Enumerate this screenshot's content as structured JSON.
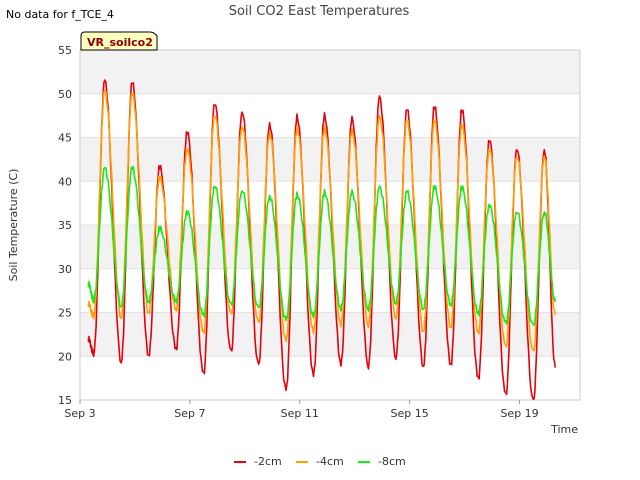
{
  "notice": "No data for f_TCE_4",
  "chart_data": {
    "type": "line",
    "title": "Soil CO2 East Temperatures",
    "xlabel": "Time",
    "ylabel": "Soil Temperature (C)",
    "badge": "VR_soilco2",
    "ylim": [
      15,
      55
    ],
    "yticks": [
      15,
      20,
      25,
      30,
      35,
      40,
      45,
      50,
      55
    ],
    "xlim_days": [
      3,
      21.2
    ],
    "xticks": [
      {
        "day": 3,
        "label": "Sep 3"
      },
      {
        "day": 7,
        "label": "Sep 7"
      },
      {
        "day": 11,
        "label": "Sep 11"
      },
      {
        "day": 15,
        "label": "Sep 15"
      },
      {
        "day": 19,
        "label": "Sep 19"
      }
    ],
    "x_unit": "day of September",
    "legend_position": "bottom-center",
    "grid": "horizontal bands",
    "series": [
      {
        "name": "-2cm",
        "color": "#e8000b",
        "extremes": [
          [
            3.3,
            22
          ],
          [
            3.5,
            20.3
          ],
          [
            3.9,
            51.5
          ],
          [
            4.5,
            19.4
          ],
          [
            4.9,
            51.3
          ],
          [
            5.5,
            20.1
          ],
          [
            5.9,
            41.7
          ],
          [
            6.5,
            20.8
          ],
          [
            6.9,
            45.7
          ],
          [
            7.5,
            17.9
          ],
          [
            7.9,
            49
          ],
          [
            8.5,
            20.4
          ],
          [
            8.9,
            48
          ],
          [
            9.5,
            18.9
          ],
          [
            9.9,
            46.6
          ],
          [
            10.5,
            16.1
          ],
          [
            10.9,
            47.4
          ],
          [
            11.5,
            17.9
          ],
          [
            11.9,
            47.5
          ],
          [
            12.5,
            19.2
          ],
          [
            12.9,
            47.1
          ],
          [
            13.5,
            18.9
          ],
          [
            13.9,
            49.6
          ],
          [
            14.5,
            19.9
          ],
          [
            14.9,
            48.2
          ],
          [
            15.5,
            18.9
          ],
          [
            15.9,
            48.5
          ],
          [
            16.5,
            19
          ],
          [
            16.9,
            48.2
          ],
          [
            17.5,
            17.4
          ],
          [
            17.9,
            44.8
          ],
          [
            18.5,
            15.5
          ],
          [
            18.9,
            43.8
          ],
          [
            19.5,
            14.8
          ],
          [
            19.9,
            43.6
          ],
          [
            20.3,
            18.7
          ]
        ]
      },
      {
        "name": "-4cm",
        "color": "#ff9f00",
        "extremes": [
          [
            3.3,
            26
          ],
          [
            3.5,
            24.6
          ],
          [
            3.9,
            50.3
          ],
          [
            4.5,
            24.5
          ],
          [
            4.9,
            50
          ],
          [
            5.5,
            25
          ],
          [
            5.9,
            40.4
          ],
          [
            6.5,
            25.3
          ],
          [
            6.9,
            43.7
          ],
          [
            7.5,
            22.6
          ],
          [
            7.9,
            47.6
          ],
          [
            8.5,
            24.7
          ],
          [
            8.9,
            46.3
          ],
          [
            9.5,
            23.7
          ],
          [
            9.9,
            45.5
          ],
          [
            10.5,
            21.7
          ],
          [
            10.9,
            46
          ],
          [
            11.5,
            22.8
          ],
          [
            11.9,
            46
          ],
          [
            12.5,
            23.7
          ],
          [
            12.9,
            45.7
          ],
          [
            13.5,
            23.6
          ],
          [
            13.9,
            47.3
          ],
          [
            14.5,
            24.5
          ],
          [
            14.9,
            46.9
          ],
          [
            15.5,
            22.9
          ],
          [
            15.9,
            46.9
          ],
          [
            16.5,
            23.3
          ],
          [
            16.9,
            46.4
          ],
          [
            17.5,
            22.6
          ],
          [
            17.9,
            43.7
          ],
          [
            18.5,
            21
          ],
          [
            18.9,
            42.9
          ],
          [
            19.5,
            20.4
          ],
          [
            19.9,
            42.9
          ],
          [
            20.3,
            24.7
          ]
        ]
      },
      {
        "name": "-8cm",
        "color": "#19e819",
        "extremes": [
          [
            3.3,
            28.3
          ],
          [
            3.5,
            26.4
          ],
          [
            3.9,
            41.5
          ],
          [
            4.5,
            25.8
          ],
          [
            4.9,
            41.5
          ],
          [
            5.5,
            26.3
          ],
          [
            5.9,
            34.6
          ],
          [
            6.5,
            26.3
          ],
          [
            6.9,
            36.5
          ],
          [
            7.5,
            24.6
          ],
          [
            7.9,
            39.5
          ],
          [
            8.5,
            25.8
          ],
          [
            8.9,
            39
          ],
          [
            9.5,
            25.4
          ],
          [
            9.9,
            38.3
          ],
          [
            10.5,
            24.1
          ],
          [
            10.9,
            38.5
          ],
          [
            11.5,
            24.6
          ],
          [
            11.9,
            38.7
          ],
          [
            12.5,
            25.5
          ],
          [
            12.9,
            38.7
          ],
          [
            13.5,
            25.5
          ],
          [
            13.9,
            39.3
          ],
          [
            14.5,
            26.2
          ],
          [
            14.9,
            38.8
          ],
          [
            15.5,
            25.5
          ],
          [
            15.9,
            39.3
          ],
          [
            16.5,
            25.9
          ],
          [
            16.9,
            39.3
          ],
          [
            17.5,
            24.8
          ],
          [
            17.9,
            37.3
          ],
          [
            18.5,
            23.7
          ],
          [
            18.9,
            36.6
          ],
          [
            19.5,
            23.4
          ],
          [
            19.9,
            36.5
          ],
          [
            20.3,
            26.2
          ]
        ]
      }
    ]
  }
}
